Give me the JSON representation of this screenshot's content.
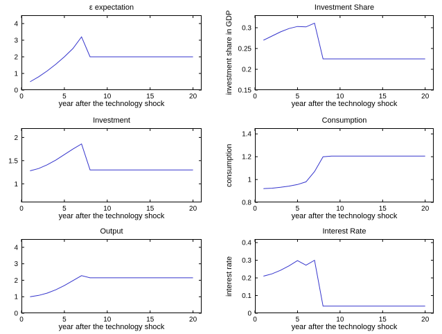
{
  "colors": {
    "line": "#3333cc",
    "axis": "#000000",
    "text": "#000000"
  },
  "chart_data": [
    {
      "type": "line",
      "title": "ε expectation",
      "xlabel": "year after the technology shock",
      "ylabel": "",
      "xlim": [
        0,
        21
      ],
      "ylim": [
        0,
        4.5
      ],
      "xticks": [
        0,
        5,
        10,
        15,
        20
      ],
      "xtick_labels": [
        "0",
        "5",
        "10",
        "15",
        "20"
      ],
      "yticks": [
        0,
        1,
        2,
        3,
        4
      ],
      "ytick_labels": [
        "0",
        "1",
        "2",
        "3",
        "4"
      ],
      "x": [
        1,
        2,
        3,
        4,
        5,
        6,
        7,
        8,
        9,
        10,
        11,
        12,
        13,
        14,
        15,
        16,
        17,
        18,
        19,
        20
      ],
      "y": [
        0.5,
        0.8,
        1.15,
        1.55,
        2.0,
        2.5,
        3.2,
        2.0,
        2.0,
        2.0,
        2.0,
        2.0,
        2.0,
        2.0,
        2.0,
        2.0,
        2.0,
        2.0,
        2.0,
        2.0
      ]
    },
    {
      "type": "line",
      "title": "Investment Share",
      "xlabel": "year after the technology shock",
      "ylabel": "investment share in GDP",
      "xlim": [
        0,
        21
      ],
      "ylim": [
        0.15,
        0.33
      ],
      "xticks": [
        0,
        5,
        10,
        15,
        20
      ],
      "xtick_labels": [
        "0",
        "5",
        "10",
        "15",
        "20"
      ],
      "yticks": [
        0.15,
        0.2,
        0.25,
        0.3
      ],
      "ytick_labels": [
        "0.15",
        "0.2",
        "0.25",
        "0.3"
      ],
      "x": [
        1,
        2,
        3,
        4,
        5,
        6,
        7,
        8,
        9,
        10,
        11,
        12,
        13,
        14,
        15,
        16,
        17,
        18,
        19,
        20
      ],
      "y": [
        0.27,
        0.28,
        0.29,
        0.298,
        0.303,
        0.302,
        0.311,
        0.225,
        0.225,
        0.225,
        0.225,
        0.225,
        0.225,
        0.225,
        0.225,
        0.225,
        0.225,
        0.225,
        0.225,
        0.225
      ]
    },
    {
      "type": "line",
      "title": "Investment",
      "xlabel": "year after the technology shock",
      "ylabel": "",
      "xlim": [
        0,
        21
      ],
      "ylim": [
        0.6,
        2.2
      ],
      "xticks": [
        0,
        5,
        10,
        15,
        20
      ],
      "xtick_labels": [
        "0",
        "5",
        "10",
        "15",
        "20"
      ],
      "yticks": [
        1,
        1.5,
        2
      ],
      "ytick_labels": [
        "1",
        "1.5",
        "2"
      ],
      "x": [
        1,
        2,
        3,
        4,
        5,
        6,
        7,
        8,
        9,
        10,
        11,
        12,
        13,
        14,
        15,
        16,
        17,
        18,
        19,
        20
      ],
      "y": [
        1.28,
        1.33,
        1.41,
        1.51,
        1.63,
        1.75,
        1.86,
        1.3,
        1.3,
        1.3,
        1.3,
        1.3,
        1.3,
        1.3,
        1.3,
        1.3,
        1.3,
        1.3,
        1.3,
        1.3
      ]
    },
    {
      "type": "line",
      "title": "Consumption",
      "xlabel": "year after the technology shock",
      "ylabel": "consumption",
      "xlim": [
        0,
        21
      ],
      "ylim": [
        0.8,
        1.45
      ],
      "xticks": [
        0,
        5,
        10,
        15,
        20
      ],
      "xtick_labels": [
        "0",
        "5",
        "10",
        "15",
        "20"
      ],
      "yticks": [
        0.8,
        1.0,
        1.2,
        1.4
      ],
      "ytick_labels": [
        "0.8",
        "1",
        "1.2",
        "1.4"
      ],
      "x": [
        1,
        2,
        3,
        4,
        5,
        6,
        7,
        8,
        9,
        10,
        11,
        12,
        13,
        14,
        15,
        16,
        17,
        18,
        19,
        20
      ],
      "y": [
        0.92,
        0.924,
        0.932,
        0.942,
        0.956,
        0.98,
        1.07,
        1.2,
        1.205,
        1.205,
        1.205,
        1.205,
        1.205,
        1.205,
        1.205,
        1.205,
        1.205,
        1.205,
        1.205,
        1.205
      ]
    },
    {
      "type": "line",
      "title": "Output",
      "xlabel": "year after the technology shock",
      "ylabel": "",
      "xlim": [
        0,
        21
      ],
      "ylim": [
        0,
        4.5
      ],
      "xticks": [
        0,
        5,
        10,
        15,
        20
      ],
      "xtick_labels": [
        "0",
        "5",
        "10",
        "15",
        "20"
      ],
      "yticks": [
        0,
        1,
        2,
        3,
        4
      ],
      "ytick_labels": [
        "0",
        "1",
        "2",
        "3",
        "4"
      ],
      "x": [
        1,
        2,
        3,
        4,
        5,
        6,
        7,
        8,
        9,
        10,
        11,
        12,
        13,
        14,
        15,
        16,
        17,
        18,
        19,
        20
      ],
      "y": [
        1.0,
        1.08,
        1.22,
        1.42,
        1.68,
        1.98,
        2.28,
        2.15,
        2.15,
        2.15,
        2.15,
        2.15,
        2.15,
        2.15,
        2.15,
        2.15,
        2.15,
        2.15,
        2.15,
        2.15
      ]
    },
    {
      "type": "line",
      "title": "Interest Rate",
      "xlabel": "year after the technology shock",
      "ylabel": "interest rate",
      "xlim": [
        0,
        21
      ],
      "ylim": [
        0,
        0.42
      ],
      "xticks": [
        0,
        5,
        10,
        15,
        20
      ],
      "xtick_labels": [
        "0",
        "5",
        "10",
        "15",
        "20"
      ],
      "yticks": [
        0,
        0.1,
        0.2,
        0.3,
        0.4
      ],
      "ytick_labels": [
        "0",
        "0.1",
        "0.2",
        "0.3",
        "0.4"
      ],
      "x": [
        1,
        2,
        3,
        4,
        5,
        6,
        7,
        8,
        9,
        10,
        11,
        12,
        13,
        14,
        15,
        16,
        17,
        18,
        19,
        20
      ],
      "y": [
        0.21,
        0.223,
        0.243,
        0.268,
        0.298,
        0.272,
        0.3,
        0.04,
        0.04,
        0.04,
        0.04,
        0.04,
        0.04,
        0.04,
        0.04,
        0.04,
        0.04,
        0.04,
        0.04,
        0.04
      ]
    }
  ]
}
